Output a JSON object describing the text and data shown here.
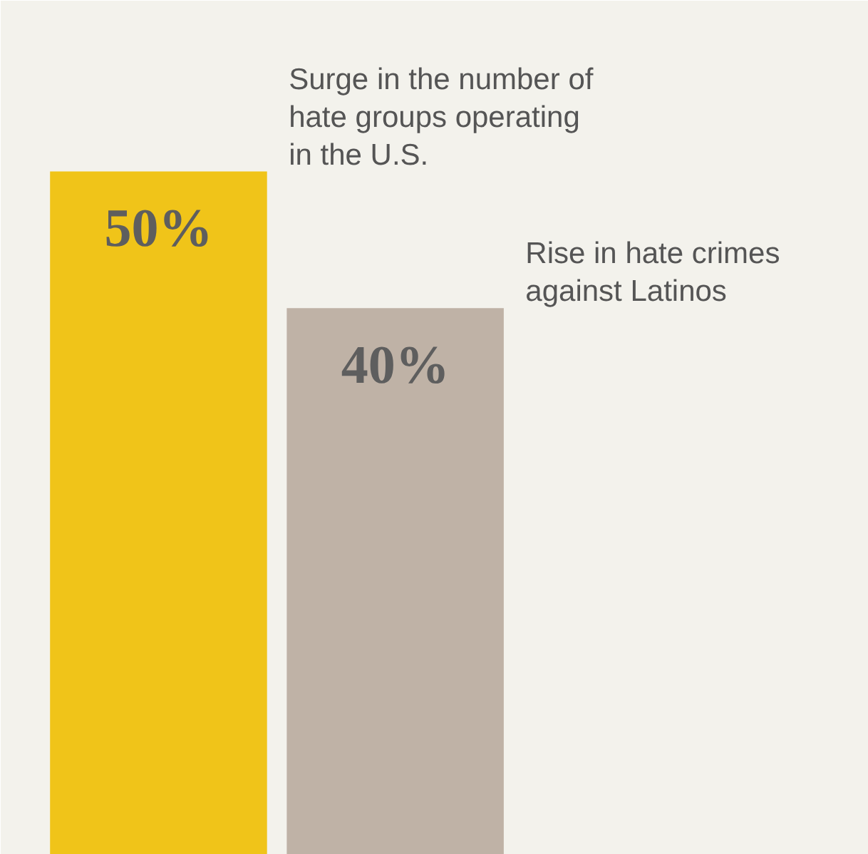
{
  "chart_data": {
    "type": "bar",
    "categories": [
      null,
      null
    ],
    "values": [
      50,
      40
    ],
    "colors": [
      "#f0c419",
      "#bfb2a6"
    ],
    "value_labels": [
      "50%",
      "40%"
    ],
    "annotations": [
      "Surge in the number of hate groups operating in the U.S.",
      "Rise in hate crimes against Latinos"
    ]
  }
}
